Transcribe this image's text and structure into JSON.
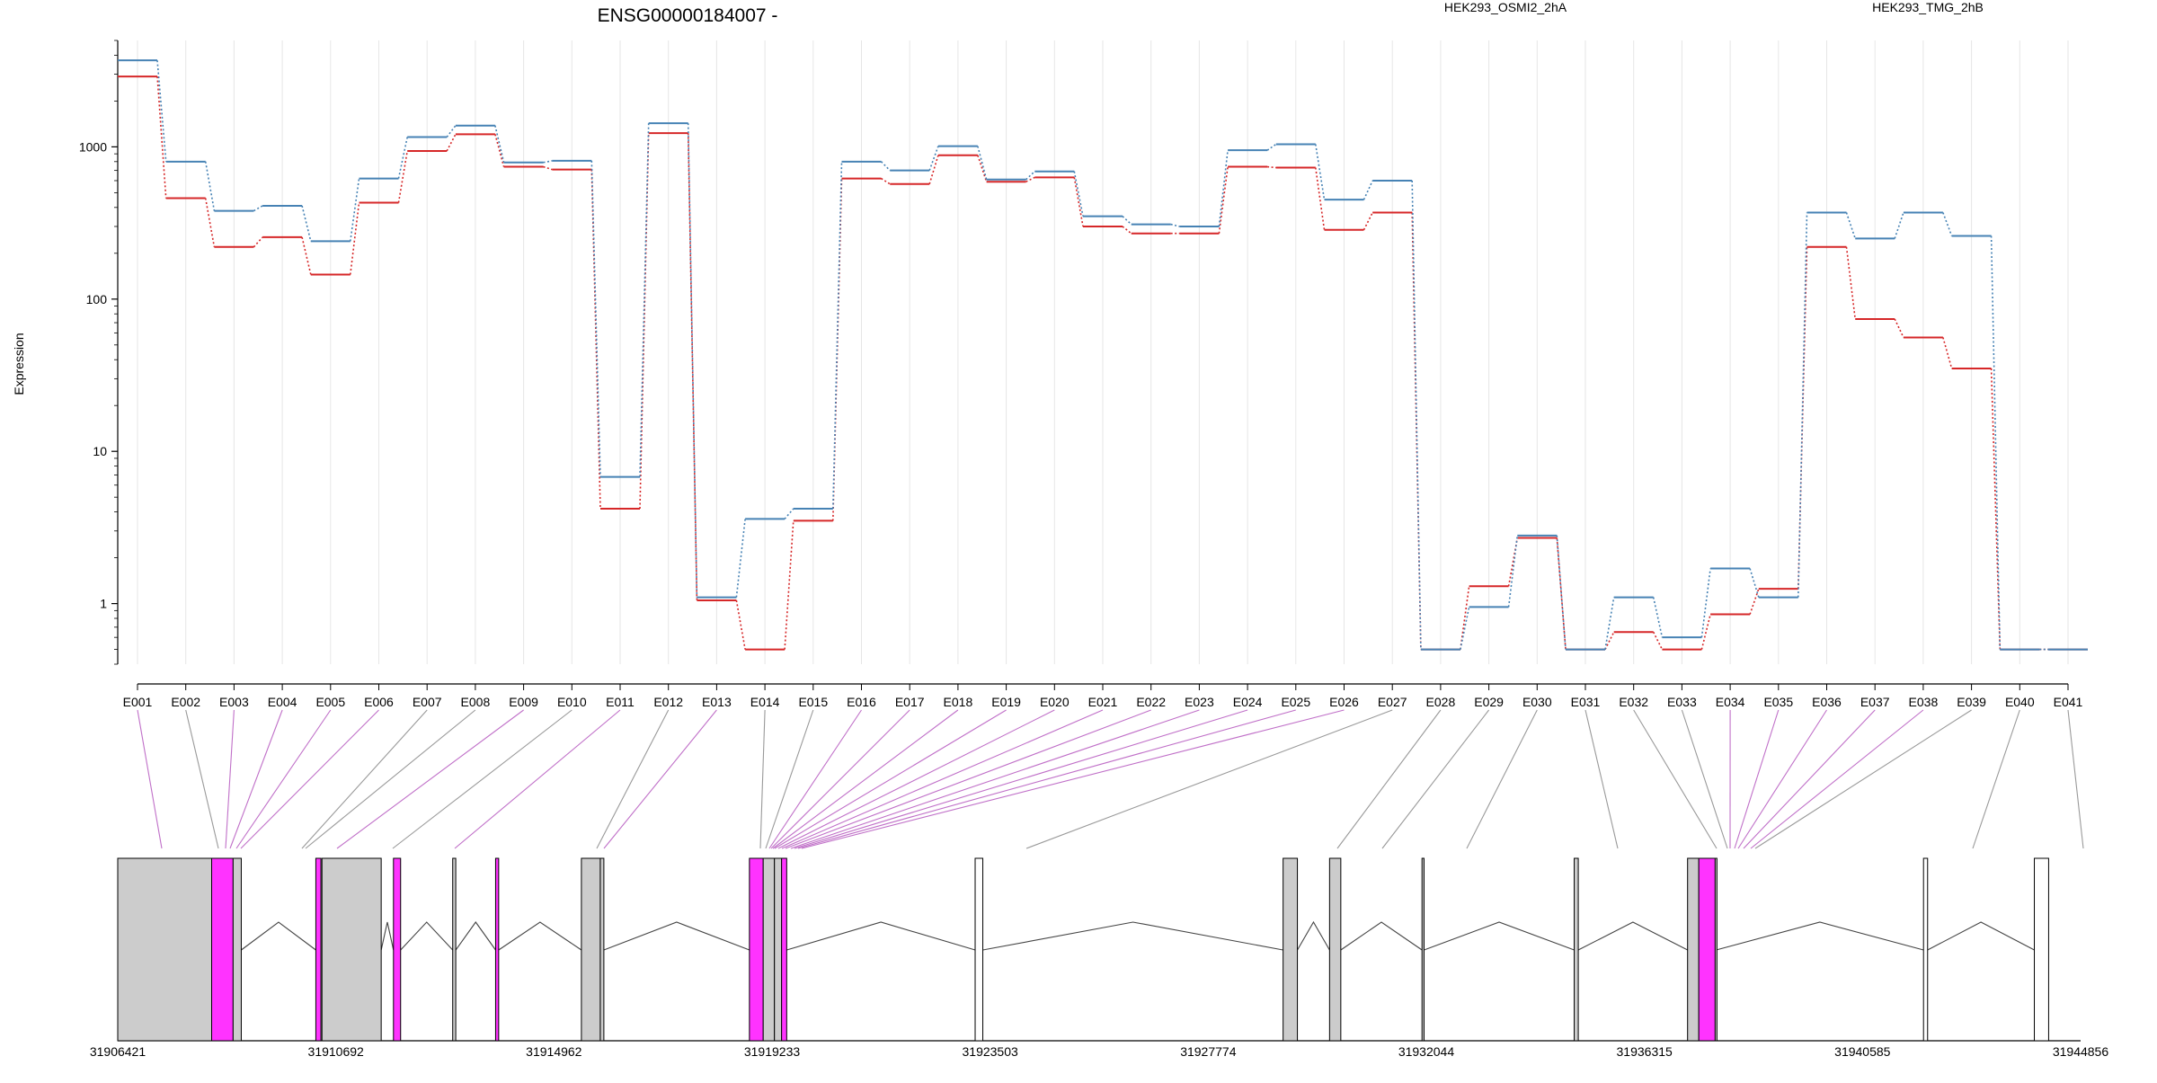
{
  "chart_data": {
    "type": "line",
    "title": "ENSG00000184007 -",
    "ylabel": "Expression",
    "yscale": "log",
    "ylim": [
      0.4,
      5000
    ],
    "ytick_labels": [
      "1",
      "10",
      "100",
      "1000"
    ],
    "grid": true,
    "legend_placement": "top-right",
    "categories": [
      "E001",
      "E002",
      "E003",
      "E004",
      "E005",
      "E006",
      "E007",
      "E008",
      "E009",
      "E010",
      "E011",
      "E012",
      "E013",
      "E014",
      "E015",
      "E016",
      "E017",
      "E018",
      "E019",
      "E020",
      "E021",
      "E022",
      "E023",
      "E024",
      "E025",
      "E026",
      "E027",
      "E028",
      "E029",
      "E030",
      "E031",
      "E032",
      "E033",
      "E034",
      "E035",
      "E036",
      "E037",
      "E038",
      "E039",
      "E040",
      "E041"
    ],
    "series": [
      {
        "name": "HEK293_OSMI2_2hA",
        "color": "#d62728",
        "values": [
          2900,
          460,
          220,
          255,
          145,
          430,
          940,
          1210,
          740,
          710,
          4.2,
          1230,
          1.05,
          0.5,
          3.5,
          620,
          570,
          880,
          590,
          630,
          300,
          270,
          270,
          740,
          730,
          285,
          370,
          0.5,
          1.3,
          2.7,
          0.5,
          0.65,
          0.5,
          0.85,
          1.25,
          220,
          74,
          56,
          35,
          0.5,
          0.5
        ]
      },
      {
        "name": "HEK293_TMG_2hB",
        "color": "#4682b4",
        "values": [
          3700,
          800,
          380,
          410,
          240,
          620,
          1160,
          1380,
          790,
          810,
          6.8,
          1430,
          1.1,
          3.6,
          4.2,
          800,
          700,
          1010,
          610,
          690,
          350,
          310,
          300,
          950,
          1040,
          450,
          600,
          0.5,
          0.95,
          2.8,
          0.5,
          1.1,
          0.6,
          1.7,
          1.1,
          370,
          250,
          370,
          260,
          0.5,
          0.5
        ]
      }
    ],
    "gene_axis": {
      "tick_labels": [
        "31906421",
        "31910692",
        "31914962",
        "31919233",
        "31923503",
        "31927774",
        "31932044",
        "31936315",
        "31940585",
        "31944856"
      ],
      "range": [
        31906421,
        31944856
      ],
      "exons": [
        {
          "start": 31906421,
          "end": 31908260,
          "fill": "#cccccc"
        },
        {
          "start": 31908260,
          "end": 31908680,
          "fill": "#ff33ff"
        },
        {
          "start": 31908680,
          "end": 31908840,
          "fill": "#cccccc"
        },
        {
          "start": 31910300,
          "end": 31910400,
          "fill": "#ff33ff"
        },
        {
          "start": 31910420,
          "end": 31911580,
          "fill": "#cccccc"
        },
        {
          "start": 31911820,
          "end": 31911960,
          "fill": "#ff33ff"
        },
        {
          "start": 31912980,
          "end": 31913040,
          "fill": "#cccccc"
        },
        {
          "start": 31913820,
          "end": 31913880,
          "fill": "#ff33ff"
        },
        {
          "start": 31915500,
          "end": 31915870,
          "fill": "#cccccc"
        },
        {
          "start": 31915870,
          "end": 31915940,
          "fill": "#cccccc"
        },
        {
          "start": 31918790,
          "end": 31919060,
          "fill": "#ff33ff"
        },
        {
          "start": 31919060,
          "end": 31919280,
          "fill": "#cccccc"
        },
        {
          "start": 31919280,
          "end": 31919420,
          "fill": "#cccccc"
        },
        {
          "start": 31919420,
          "end": 31919520,
          "fill": "#ff33ff"
        },
        {
          "start": 31923210,
          "end": 31923360,
          "fill": "#ffffff"
        },
        {
          "start": 31929240,
          "end": 31929520,
          "fill": "#cccccc"
        },
        {
          "start": 31930150,
          "end": 31930370,
          "fill": "#cccccc"
        },
        {
          "start": 31931960,
          "end": 31932000,
          "fill": "#cccccc"
        },
        {
          "start": 31934940,
          "end": 31935020,
          "fill": "#cccccc"
        },
        {
          "start": 31937160,
          "end": 31937380,
          "fill": "#cccccc"
        },
        {
          "start": 31937380,
          "end": 31937700,
          "fill": "#ff33ff"
        },
        {
          "start": 31937700,
          "end": 31937720,
          "fill": "#cccccc"
        },
        {
          "start": 31941780,
          "end": 31941860,
          "fill": "#ffffff"
        },
        {
          "start": 31943950,
          "end": 31944230,
          "fill": "#ffffff"
        }
      ]
    }
  }
}
